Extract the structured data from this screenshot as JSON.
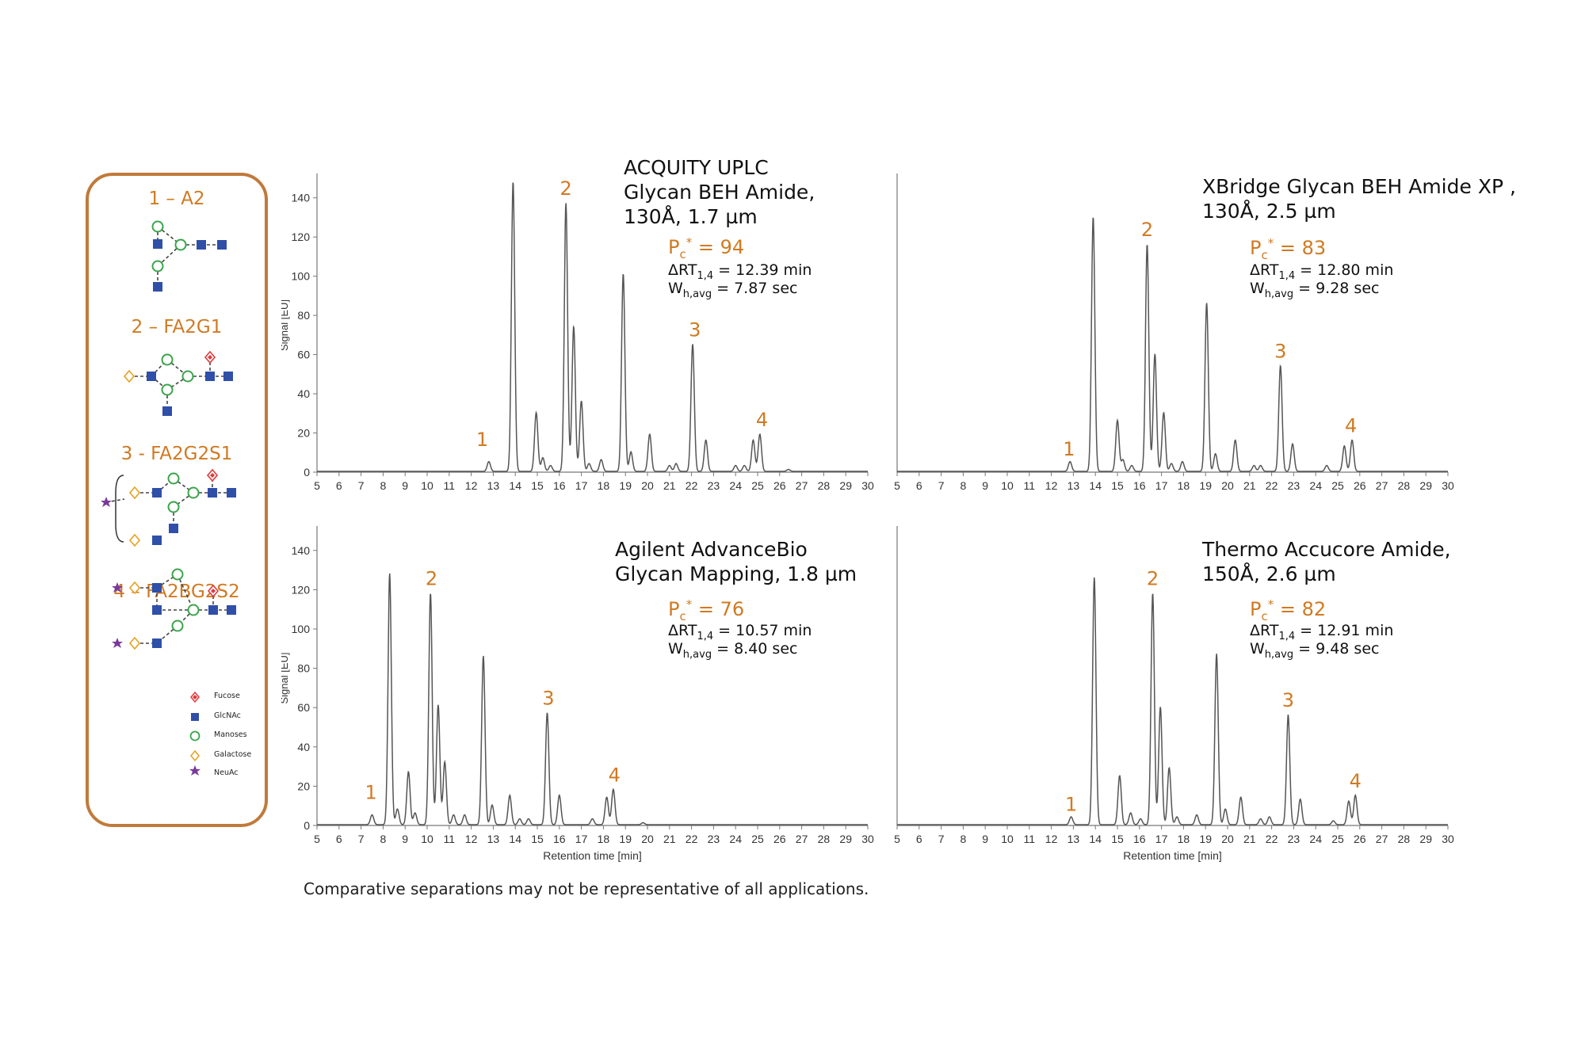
{
  "glycan_panel": {
    "glycans": [
      {
        "label": "1 – A2"
      },
      {
        "label": "2 – FA2G1"
      },
      {
        "label": "3 - FA2G2S1"
      },
      {
        "label": "4 – FA2BG2S2"
      }
    ],
    "key": [
      {
        "label": "Fucose",
        "icon": "red-diamond-icon",
        "color": "#e03a3a"
      },
      {
        "label": "GlcNAc",
        "icon": "blue-square-icon",
        "color": "#2f4fa8"
      },
      {
        "label": "Manoses",
        "icon": "green-circle-icon",
        "color": "#3aa54a"
      },
      {
        "label": "Galactose",
        "icon": "yellow-diamond-icon",
        "color": "#e8a020"
      },
      {
        "label": "NeuAc",
        "icon": "purple-star-icon",
        "color": "#7a3a9a"
      }
    ]
  },
  "footnote": "Comparative separations may not be representative of all applications.",
  "colors": {
    "accent": "#d07a22",
    "trace": "#555555",
    "border": "#c07a3a"
  },
  "chart_data": [
    {
      "type": "line",
      "title": "ACQUITY UPLC\nGlycan BEH Amide,\n130Å, 1.7 µm",
      "pc_label": "P",
      "pc_sub": "c",
      "pc_sup": "*",
      "pc_value": "= 94",
      "drt_label": "ΔRT",
      "drt_sub": "1,4",
      "drt_value": "= 12.39 min",
      "wh_label": "W",
      "wh_sub": "h,avg",
      "wh_value": "= 7.87 sec",
      "xlabel": "",
      "ylabel": "Signal [EU]",
      "xlim": [
        5,
        30
      ],
      "ylim": [
        0,
        150
      ],
      "xticks": [
        5,
        6,
        7,
        8,
        9,
        10,
        11,
        12,
        13,
        14,
        15,
        16,
        17,
        18,
        19,
        20,
        21,
        22,
        23,
        24,
        25,
        26,
        27,
        28,
        29,
        30
      ],
      "yticks": [
        0,
        20,
        40,
        60,
        80,
        100,
        120,
        140
      ],
      "peaks": [
        [
          12.8,
          5
        ],
        [
          13.9,
          148
        ],
        [
          14.95,
          30
        ],
        [
          15.25,
          7
        ],
        [
          15.6,
          3
        ],
        [
          16.3,
          137
        ],
        [
          16.65,
          74
        ],
        [
          17.0,
          36
        ],
        [
          17.35,
          4
        ],
        [
          17.9,
          6
        ],
        [
          18.9,
          101
        ],
        [
          19.25,
          10
        ],
        [
          20.1,
          19
        ],
        [
          21.0,
          3
        ],
        [
          21.3,
          4
        ],
        [
          22.05,
          65
        ],
        [
          22.65,
          16
        ],
        [
          24.0,
          3
        ],
        [
          24.4,
          3
        ],
        [
          24.8,
          16
        ],
        [
          25.1,
          19
        ],
        [
          26.4,
          1
        ]
      ],
      "peak_labels": [
        {
          "text": "1",
          "x": 12.5,
          "y": 11
        },
        {
          "text": "2",
          "x": 16.3,
          "y": 139
        },
        {
          "text": "3",
          "x": 22.15,
          "y": 67
        },
        {
          "text": "4",
          "x": 25.2,
          "y": 21
        }
      ]
    },
    {
      "type": "line",
      "title": "XBridge Glycan BEH Amide XP ,\n130Å, 2.5 µm",
      "pc_label": "P",
      "pc_sub": "c",
      "pc_sup": "*",
      "pc_value": "= 83",
      "drt_label": "ΔRT",
      "drt_sub": "1,4",
      "drt_value": "= 12.80 min",
      "wh_label": "W",
      "wh_sub": "h,avg",
      "wh_value": "= 9.28 sec",
      "xlabel": "",
      "ylabel": "",
      "xlim": [
        5,
        30
      ],
      "ylim": [
        0,
        150
      ],
      "xticks": [
        5,
        6,
        7,
        8,
        9,
        10,
        11,
        12,
        13,
        14,
        15,
        16,
        17,
        18,
        19,
        20,
        21,
        22,
        23,
        24,
        25,
        26,
        27,
        28,
        29,
        30
      ],
      "yticks": [],
      "peaks": [
        [
          12.85,
          5
        ],
        [
          13.9,
          130
        ],
        [
          15.0,
          26
        ],
        [
          15.25,
          6
        ],
        [
          15.65,
          3
        ],
        [
          16.35,
          116
        ],
        [
          16.7,
          60
        ],
        [
          17.1,
          30
        ],
        [
          17.45,
          4
        ],
        [
          17.95,
          5
        ],
        [
          19.05,
          86
        ],
        [
          19.45,
          9
        ],
        [
          20.35,
          16
        ],
        [
          21.2,
          3
        ],
        [
          21.5,
          3
        ],
        [
          22.4,
          54
        ],
        [
          22.95,
          14
        ],
        [
          24.5,
          3
        ],
        [
          25.3,
          13
        ],
        [
          25.65,
          16
        ]
      ],
      "peak_labels": [
        {
          "text": "1",
          "x": 12.8,
          "y": 6
        },
        {
          "text": "2",
          "x": 16.35,
          "y": 118
        },
        {
          "text": "3",
          "x": 22.4,
          "y": 56
        },
        {
          "text": "4",
          "x": 25.6,
          "y": 18
        }
      ]
    },
    {
      "type": "line",
      "title": "Agilent AdvanceBio\nGlycan Mapping, 1.8 µm",
      "pc_label": "P",
      "pc_sub": "c",
      "pc_sup": "*",
      "pc_value": "= 76",
      "drt_label": "ΔRT",
      "drt_sub": "1,4",
      "drt_value": "= 10.57 min",
      "wh_label": "W",
      "wh_sub": "h,avg",
      "wh_value": "= 8.40 sec",
      "xlabel": "Retention time [min]",
      "ylabel": "Signal [EU]",
      "xlim": [
        5,
        30
      ],
      "ylim": [
        0,
        150
      ],
      "xticks": [
        5,
        6,
        7,
        8,
        9,
        10,
        11,
        12,
        13,
        14,
        15,
        16,
        17,
        18,
        19,
        20,
        21,
        22,
        23,
        24,
        25,
        26,
        27,
        28,
        29,
        30
      ],
      "yticks": [
        0,
        20,
        40,
        60,
        80,
        100,
        120,
        140
      ],
      "peaks": [
        [
          7.5,
          5
        ],
        [
          8.3,
          128
        ],
        [
          8.65,
          8
        ],
        [
          9.15,
          27
        ],
        [
          9.45,
          6
        ],
        [
          10.15,
          118
        ],
        [
          10.5,
          61
        ],
        [
          10.8,
          32
        ],
        [
          11.2,
          5
        ],
        [
          11.7,
          5
        ],
        [
          12.55,
          86
        ],
        [
          12.95,
          10
        ],
        [
          13.75,
          15
        ],
        [
          14.2,
          3
        ],
        [
          14.6,
          3
        ],
        [
          15.45,
          57
        ],
        [
          16.0,
          15
        ],
        [
          17.5,
          3
        ],
        [
          18.15,
          14
        ],
        [
          18.45,
          18
        ],
        [
          19.8,
          1
        ]
      ],
      "peak_labels": [
        {
          "text": "1",
          "x": 7.45,
          "y": 11
        },
        {
          "text": "2",
          "x": 10.2,
          "y": 120
        },
        {
          "text": "3",
          "x": 15.5,
          "y": 59
        },
        {
          "text": "4",
          "x": 18.5,
          "y": 20
        }
      ]
    },
    {
      "type": "line",
      "title": "Thermo Accucore Amide,\n150Å, 2.6 µm",
      "pc_label": "P",
      "pc_sub": "c",
      "pc_sup": "*",
      "pc_value": "= 82",
      "drt_label": "ΔRT",
      "drt_sub": "1,4",
      "drt_value": "= 12.91 min",
      "wh_label": "W",
      "wh_sub": "h,avg",
      "wh_value": "= 9.48 sec",
      "xlabel": "Retention time [min]",
      "ylabel": "",
      "xlim": [
        5,
        30
      ],
      "ylim": [
        0,
        150
      ],
      "xticks": [
        5,
        6,
        7,
        8,
        9,
        10,
        11,
        12,
        13,
        14,
        15,
        16,
        17,
        18,
        19,
        20,
        21,
        22,
        23,
        24,
        25,
        26,
        27,
        28,
        29,
        30
      ],
      "yticks": [],
      "peaks": [
        [
          12.9,
          4
        ],
        [
          13.95,
          126
        ],
        [
          15.1,
          25
        ],
        [
          15.6,
          6
        ],
        [
          16.05,
          3
        ],
        [
          16.6,
          118
        ],
        [
          16.95,
          60
        ],
        [
          17.35,
          29
        ],
        [
          17.7,
          4
        ],
        [
          18.6,
          5
        ],
        [
          19.5,
          87
        ],
        [
          19.9,
          8
        ],
        [
          20.6,
          14
        ],
        [
          21.5,
          3
        ],
        [
          21.9,
          4
        ],
        [
          22.75,
          56
        ],
        [
          23.3,
          13
        ],
        [
          24.8,
          2
        ],
        [
          25.5,
          12
        ],
        [
          25.8,
          15
        ]
      ],
      "peak_labels": [
        {
          "text": "1",
          "x": 12.9,
          "y": 5
        },
        {
          "text": "2",
          "x": 16.6,
          "y": 120
        },
        {
          "text": "3",
          "x": 22.75,
          "y": 58
        },
        {
          "text": "4",
          "x": 25.8,
          "y": 17
        }
      ]
    }
  ]
}
